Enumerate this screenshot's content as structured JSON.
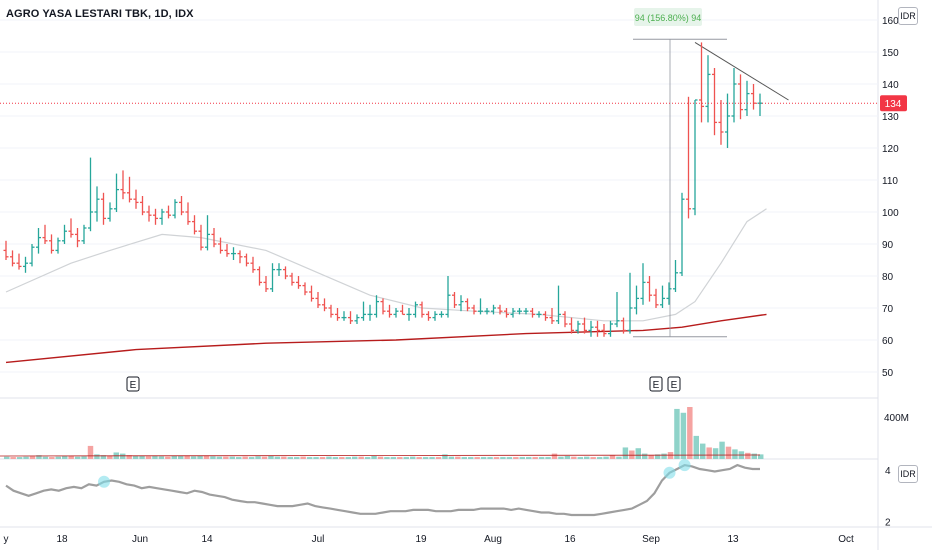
{
  "header": {
    "title": "AGRO YASA LESTARI TBK, 1D, IDX",
    "currency": "IDR"
  },
  "measure_label": "94 (156.80%) 94",
  "price_axis": {
    "ticks": [
      "160",
      "150",
      "140",
      "130",
      "120",
      "110",
      "100",
      "90",
      "80",
      "70",
      "60",
      "50"
    ],
    "current_label": "134"
  },
  "volume_axis": {
    "tick": "400M"
  },
  "indicator_axis": {
    "ticks": [
      "4",
      "2"
    ],
    "currency": "IDR"
  },
  "time_axis": {
    "ticks": [
      "y",
      "18",
      "Jun",
      "14",
      "Jul",
      "19",
      "Aug",
      "16",
      "Sep",
      "13",
      "Oct"
    ]
  },
  "earnings_markers": [
    "E",
    "E",
    "E"
  ],
  "colors": {
    "up": "#26a69a",
    "down": "#ef5350",
    "sma_long": "#b71c1c",
    "sma_short": "#d0d3d6",
    "indicator": "#9e9e9e",
    "current_price": "#f23645",
    "measure": "#9598a1"
  },
  "chart_data": {
    "type": "ohlc",
    "title": "AGRO YASA LESTARI TBK, 1D, IDX",
    "ylim": [
      45,
      163
    ],
    "current_price": 134,
    "bars": [
      {
        "o": 88,
        "h": 91,
        "l": 85,
        "c": 86
      },
      {
        "o": 86,
        "h": 88,
        "l": 83,
        "c": 84
      },
      {
        "o": 84,
        "h": 87,
        "l": 82,
        "c": 83
      },
      {
        "o": 83,
        "h": 86,
        "l": 81,
        "c": 84
      },
      {
        "o": 84,
        "h": 90,
        "l": 83,
        "c": 89
      },
      {
        "o": 89,
        "h": 95,
        "l": 87,
        "c": 92
      },
      {
        "o": 92,
        "h": 96,
        "l": 90,
        "c": 91
      },
      {
        "o": 91,
        "h": 93,
        "l": 87,
        "c": 88
      },
      {
        "o": 88,
        "h": 92,
        "l": 87,
        "c": 91
      },
      {
        "o": 91,
        "h": 96,
        "l": 90,
        "c": 94
      },
      {
        "o": 94,
        "h": 98,
        "l": 92,
        "c": 93
      },
      {
        "o": 93,
        "h": 95,
        "l": 89,
        "c": 91
      },
      {
        "o": 91,
        "h": 96,
        "l": 90,
        "c": 95
      },
      {
        "o": 95,
        "h": 117,
        "l": 94,
        "c": 100
      },
      {
        "o": 100,
        "h": 108,
        "l": 97,
        "c": 104
      },
      {
        "o": 104,
        "h": 106,
        "l": 96,
        "c": 98
      },
      {
        "o": 98,
        "h": 103,
        "l": 97,
        "c": 101
      },
      {
        "o": 101,
        "h": 112,
        "l": 100,
        "c": 107
      },
      {
        "o": 107,
        "h": 113,
        "l": 104,
        "c": 106
      },
      {
        "o": 106,
        "h": 111,
        "l": 103,
        "c": 104
      },
      {
        "o": 104,
        "h": 107,
        "l": 101,
        "c": 103
      },
      {
        "o": 103,
        "h": 105,
        "l": 99,
        "c": 100
      },
      {
        "o": 100,
        "h": 102,
        "l": 97,
        "c": 99
      },
      {
        "o": 99,
        "h": 101,
        "l": 96,
        "c": 98
      },
      {
        "o": 98,
        "h": 101,
        "l": 96,
        "c": 100
      },
      {
        "o": 100,
        "h": 102,
        "l": 98,
        "c": 99
      },
      {
        "o": 99,
        "h": 104,
        "l": 98,
        "c": 103
      },
      {
        "o": 103,
        "h": 105,
        "l": 99,
        "c": 100
      },
      {
        "o": 100,
        "h": 103,
        "l": 96,
        "c": 97
      },
      {
        "o": 97,
        "h": 99,
        "l": 93,
        "c": 94
      },
      {
        "o": 94,
        "h": 96,
        "l": 88,
        "c": 89
      },
      {
        "o": 89,
        "h": 99,
        "l": 88,
        "c": 93
      },
      {
        "o": 93,
        "h": 95,
        "l": 89,
        "c": 90
      },
      {
        "o": 90,
        "h": 92,
        "l": 87,
        "c": 88
      },
      {
        "o": 88,
        "h": 90,
        "l": 86,
        "c": 87
      },
      {
        "o": 87,
        "h": 89,
        "l": 85,
        "c": 87
      },
      {
        "o": 87,
        "h": 88,
        "l": 84,
        "c": 86
      },
      {
        "o": 86,
        "h": 87,
        "l": 83,
        "c": 84
      },
      {
        "o": 84,
        "h": 86,
        "l": 81,
        "c": 82
      },
      {
        "o": 82,
        "h": 83,
        "l": 77,
        "c": 78
      },
      {
        "o": 78,
        "h": 80,
        "l": 75,
        "c": 76
      },
      {
        "o": 76,
        "h": 84,
        "l": 75,
        "c": 82
      },
      {
        "o": 82,
        "h": 84,
        "l": 80,
        "c": 82
      },
      {
        "o": 82,
        "h": 83,
        "l": 79,
        "c": 80
      },
      {
        "o": 80,
        "h": 81,
        "l": 77,
        "c": 78
      },
      {
        "o": 78,
        "h": 80,
        "l": 76,
        "c": 77
      },
      {
        "o": 77,
        "h": 78,
        "l": 74,
        "c": 75
      },
      {
        "o": 75,
        "h": 77,
        "l": 72,
        "c": 73
      },
      {
        "o": 73,
        "h": 75,
        "l": 70,
        "c": 71
      },
      {
        "o": 71,
        "h": 73,
        "l": 69,
        "c": 70
      },
      {
        "o": 70,
        "h": 71,
        "l": 67,
        "c": 68
      },
      {
        "o": 68,
        "h": 70,
        "l": 66,
        "c": 67
      },
      {
        "o": 67,
        "h": 69,
        "l": 66,
        "c": 67
      },
      {
        "o": 67,
        "h": 69,
        "l": 65,
        "c": 66
      },
      {
        "o": 66,
        "h": 68,
        "l": 65,
        "c": 67
      },
      {
        "o": 67,
        "h": 72,
        "l": 66,
        "c": 68
      },
      {
        "o": 68,
        "h": 71,
        "l": 66,
        "c": 68
      },
      {
        "o": 68,
        "h": 74,
        "l": 67,
        "c": 72
      },
      {
        "o": 72,
        "h": 73,
        "l": 68,
        "c": 69
      },
      {
        "o": 69,
        "h": 71,
        "l": 67,
        "c": 68
      },
      {
        "o": 68,
        "h": 70,
        "l": 67,
        "c": 69
      },
      {
        "o": 69,
        "h": 71,
        "l": 68,
        "c": 68
      },
      {
        "o": 68,
        "h": 70,
        "l": 66,
        "c": 68
      },
      {
        "o": 68,
        "h": 72,
        "l": 67,
        "c": 71
      },
      {
        "o": 71,
        "h": 72,
        "l": 67,
        "c": 68
      },
      {
        "o": 68,
        "h": 69,
        "l": 66,
        "c": 67
      },
      {
        "o": 67,
        "h": 69,
        "l": 66,
        "c": 68
      },
      {
        "o": 68,
        "h": 69,
        "l": 67,
        "c": 68
      },
      {
        "o": 68,
        "h": 80,
        "l": 67,
        "c": 74
      },
      {
        "o": 74,
        "h": 75,
        "l": 70,
        "c": 71
      },
      {
        "o": 71,
        "h": 74,
        "l": 69,
        "c": 72
      },
      {
        "o": 72,
        "h": 73,
        "l": 69,
        "c": 70
      },
      {
        "o": 70,
        "h": 71,
        "l": 68,
        "c": 69
      },
      {
        "o": 69,
        "h": 73,
        "l": 68,
        "c": 69
      },
      {
        "o": 69,
        "h": 70,
        "l": 68,
        "c": 69
      },
      {
        "o": 69,
        "h": 71,
        "l": 68,
        "c": 70
      },
      {
        "o": 70,
        "h": 71,
        "l": 68,
        "c": 69
      },
      {
        "o": 69,
        "h": 70,
        "l": 67,
        "c": 68
      },
      {
        "o": 68,
        "h": 70,
        "l": 67,
        "c": 69
      },
      {
        "o": 69,
        "h": 70,
        "l": 68,
        "c": 69
      },
      {
        "o": 69,
        "h": 70,
        "l": 68,
        "c": 69
      },
      {
        "o": 69,
        "h": 70,
        "l": 67,
        "c": 68
      },
      {
        "o": 68,
        "h": 69,
        "l": 67,
        "c": 68
      },
      {
        "o": 68,
        "h": 69,
        "l": 66,
        "c": 67
      },
      {
        "o": 67,
        "h": 70,
        "l": 65,
        "c": 66
      },
      {
        "o": 66,
        "h": 77,
        "l": 65,
        "c": 68
      },
      {
        "o": 68,
        "h": 69,
        "l": 64,
        "c": 65
      },
      {
        "o": 65,
        "h": 67,
        "l": 62,
        "c": 63
      },
      {
        "o": 63,
        "h": 66,
        "l": 62,
        "c": 65
      },
      {
        "o": 65,
        "h": 67,
        "l": 62,
        "c": 63
      },
      {
        "o": 63,
        "h": 66,
        "l": 61,
        "c": 64
      },
      {
        "o": 64,
        "h": 66,
        "l": 61,
        "c": 63
      },
      {
        "o": 63,
        "h": 65,
        "l": 61,
        "c": 62
      },
      {
        "o": 62,
        "h": 66,
        "l": 61,
        "c": 65
      },
      {
        "o": 65,
        "h": 75,
        "l": 64,
        "c": 66
      },
      {
        "o": 66,
        "h": 67,
        "l": 62,
        "c": 63
      },
      {
        "o": 63,
        "h": 81,
        "l": 62,
        "c": 70
      },
      {
        "o": 70,
        "h": 77,
        "l": 68,
        "c": 73
      },
      {
        "o": 73,
        "h": 84,
        "l": 71,
        "c": 78
      },
      {
        "o": 78,
        "h": 80,
        "l": 72,
        "c": 74
      },
      {
        "o": 74,
        "h": 76,
        "l": 70,
        "c": 71
      },
      {
        "o": 71,
        "h": 77,
        "l": 70,
        "c": 73
      },
      {
        "o": 73,
        "h": 78,
        "l": 71,
        "c": 76
      },
      {
        "o": 76,
        "h": 85,
        "l": 75,
        "c": 81
      },
      {
        "o": 81,
        "h": 106,
        "l": 80,
        "c": 104
      },
      {
        "o": 104,
        "h": 136,
        "l": 98,
        "c": 101
      },
      {
        "o": 101,
        "h": 135,
        "l": 99,
        "c": 135
      },
      {
        "o": 135,
        "h": 153,
        "l": 128,
        "c": 133
      },
      {
        "o": 133,
        "h": 149,
        "l": 128,
        "c": 143
      },
      {
        "o": 143,
        "h": 145,
        "l": 124,
        "c": 128
      },
      {
        "o": 128,
        "h": 135,
        "l": 121,
        "c": 125
      },
      {
        "o": 125,
        "h": 137,
        "l": 120,
        "c": 130
      },
      {
        "o": 130,
        "h": 145,
        "l": 128,
        "c": 140
      },
      {
        "o": 140,
        "h": 143,
        "l": 129,
        "c": 132
      },
      {
        "o": 132,
        "h": 141,
        "l": 130,
        "c": 137
      },
      {
        "o": 137,
        "h": 140,
        "l": 132,
        "c": 134
      },
      {
        "o": 134,
        "h": 137,
        "l": 130,
        "c": 134
      }
    ],
    "sma_short": [
      {
        "i": 0,
        "v": 75
      },
      {
        "i": 10,
        "v": 84
      },
      {
        "i": 16,
        "v": 88
      },
      {
        "i": 24,
        "v": 93
      },
      {
        "i": 30,
        "v": 92
      },
      {
        "i": 40,
        "v": 88
      },
      {
        "i": 48,
        "v": 81
      },
      {
        "i": 56,
        "v": 74
      },
      {
        "i": 64,
        "v": 70
      },
      {
        "i": 72,
        "v": 69
      },
      {
        "i": 82,
        "v": 68
      },
      {
        "i": 92,
        "v": 66
      },
      {
        "i": 98,
        "v": 66
      },
      {
        "i": 103,
        "v": 68
      },
      {
        "i": 106,
        "v": 72
      },
      {
        "i": 110,
        "v": 84
      },
      {
        "i": 114,
        "v": 97
      },
      {
        "i": 117,
        "v": 101
      }
    ],
    "sma_long": [
      {
        "i": 0,
        "v": 53
      },
      {
        "i": 20,
        "v": 57
      },
      {
        "i": 40,
        "v": 59
      },
      {
        "i": 60,
        "v": 60
      },
      {
        "i": 80,
        "v": 62
      },
      {
        "i": 98,
        "v": 63
      },
      {
        "i": 104,
        "v": 64
      },
      {
        "i": 110,
        "v": 66
      },
      {
        "i": 117,
        "v": 68
      }
    ],
    "volume_series": [
      6,
      5,
      5,
      6,
      7,
      10,
      6,
      5,
      6,
      8,
      9,
      6,
      7,
      34,
      12,
      10,
      9,
      17,
      14,
      10,
      9,
      8,
      7,
      8,
      7,
      6,
      8,
      9,
      8,
      7,
      8,
      9,
      7,
      6,
      6,
      6,
      5,
      6,
      5,
      7,
      6,
      8,
      6,
      6,
      5,
      5,
      6,
      5,
      5,
      5,
      6,
      5,
      5,
      5,
      6,
      6,
      5,
      8,
      6,
      5,
      5,
      5,
      5,
      6,
      5,
      5,
      5,
      5,
      12,
      6,
      6,
      5,
      5,
      5,
      5,
      5,
      5,
      5,
      5,
      5,
      5,
      5,
      5,
      5,
      5,
      14,
      6,
      8,
      6,
      5,
      6,
      5,
      5,
      6,
      10,
      6,
      30,
      22,
      28,
      14,
      10,
      12,
      14,
      18,
      130,
      120,
      135,
      60,
      40,
      30,
      28,
      45,
      32,
      25,
      20,
      16,
      14,
      12
    ],
    "indicator_series": [
      3.4,
      3.2,
      3.1,
      3.0,
      3.1,
      3.2,
      3.25,
      3.2,
      3.3,
      3.35,
      3.3,
      3.45,
      3.4,
      3.55,
      3.6,
      3.55,
      3.45,
      3.4,
      3.3,
      3.35,
      3.3,
      3.25,
      3.2,
      3.15,
      3.1,
      3.2,
      3.15,
      3.05,
      3.0,
      2.95,
      2.85,
      2.8,
      2.75,
      2.75,
      2.7,
      2.65,
      2.6,
      2.6,
      2.6,
      2.65,
      2.7,
      2.6,
      2.55,
      2.5,
      2.45,
      2.4,
      2.35,
      2.3,
      2.3,
      2.3,
      2.35,
      2.4,
      2.4,
      2.4,
      2.45,
      2.45,
      2.45,
      2.4,
      2.4,
      2.4,
      2.45,
      2.45,
      2.45,
      2.5,
      2.5,
      2.5,
      2.5,
      2.45,
      2.5,
      2.45,
      2.4,
      2.35,
      2.35,
      2.3,
      2.3,
      2.25,
      2.25,
      2.25,
      2.25,
      2.3,
      2.35,
      2.4,
      2.45,
      2.5,
      2.65,
      2.8,
      3.1,
      3.6,
      3.9,
      4.05,
      4.2,
      4.15,
      4.05,
      4.0,
      3.95,
      4.0,
      4.05,
      4.2,
      4.1,
      4.05,
      4.05
    ]
  }
}
